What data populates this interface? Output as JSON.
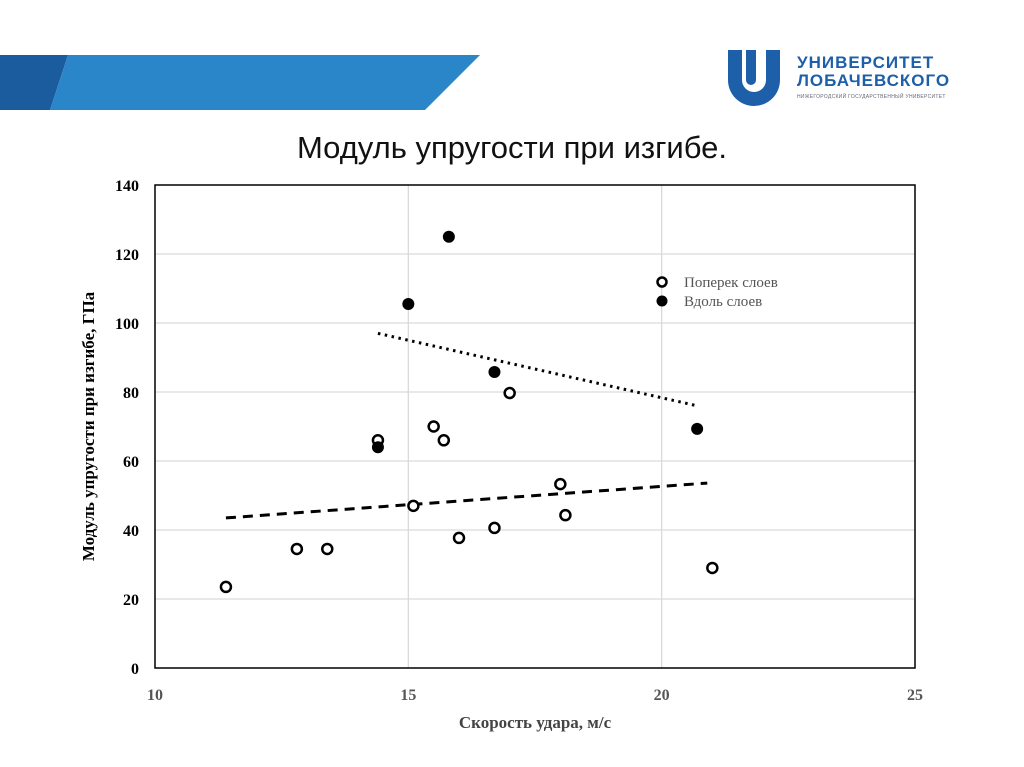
{
  "logo": {
    "line1": "УНИВЕРСИТЕТ",
    "line2": "ЛОБАЧЕВСКОГО",
    "line3": "НИЖЕГОРОДСКИЙ ГОСУДАРСТВЕННЫЙ УНИВЕРСИТЕТ",
    "color": "#1d5fa8"
  },
  "slide_title": "Модуль упругости при изгибе.",
  "chart_data": {
    "type": "scatter",
    "title": "Модуль упругости при изгибе.",
    "xlabel": "Скорость удара, м/с",
    "ylabel": "Модуль упругости при изгибе, ГПа",
    "xlim": [
      10,
      25
    ],
    "ylim": [
      0,
      140
    ],
    "xticks": [
      "10",
      "15",
      "20",
      "25"
    ],
    "yticks": [
      "0",
      "20",
      "40",
      "60",
      "80",
      "100",
      "120",
      "140"
    ],
    "grid": true,
    "legend_position": "top-right",
    "series": [
      {
        "name": "Поперек слоев",
        "marker": "open-circle",
        "points": [
          [
            11.4,
            23.5
          ],
          [
            12.8,
            34.5
          ],
          [
            13.4,
            34.5
          ],
          [
            14.4,
            66
          ],
          [
            15.1,
            47
          ],
          [
            15.5,
            70
          ],
          [
            15.7,
            66
          ],
          [
            16.0,
            37.7
          ],
          [
            16.7,
            40.6
          ],
          [
            17.0,
            79.7
          ],
          [
            18.0,
            53.3
          ],
          [
            18.1,
            44.3
          ],
          [
            21.0,
            29
          ]
        ],
        "trendline": {
          "style": "dashed",
          "from": [
            11.4,
            43.5
          ],
          "to": [
            20.9,
            53.6
          ]
        }
      },
      {
        "name": "Вдоль слоев",
        "marker": "filled-circle",
        "points": [
          [
            14.4,
            64
          ],
          [
            15.0,
            105.5
          ],
          [
            15.8,
            125
          ],
          [
            16.7,
            85.8
          ],
          [
            20.7,
            69.3
          ]
        ],
        "trendline": {
          "style": "dotted",
          "from": [
            14.4,
            97
          ],
          "to": [
            20.7,
            76
          ]
        }
      }
    ]
  }
}
